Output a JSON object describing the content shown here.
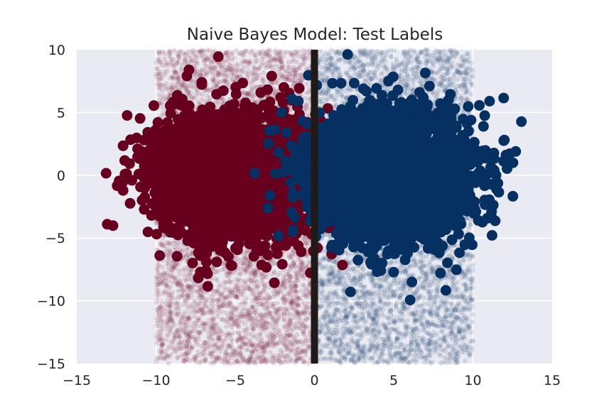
{
  "chart_data": {
    "type": "scatter",
    "title": "Naive Bayes Model: Test Labels",
    "xlabel": "",
    "ylabel": "",
    "xlim": [
      -15,
      15
    ],
    "ylim": [
      -15,
      10
    ],
    "xticks": [
      -15,
      -10,
      -5,
      0,
      5,
      10,
      15
    ],
    "xtick_labels": [
      "−15",
      "−10",
      "−5",
      "0",
      "5",
      "10",
      "15"
    ],
    "yticks": [
      -15,
      -10,
      -5,
      0,
      5,
      10
    ],
    "ytick_labels": [
      "−15",
      "−10",
      "−5",
      "0",
      "5",
      "10"
    ],
    "grid": true,
    "background": "#eaeaf2",
    "decision_boundary_x": 0,
    "boundary_color": "#1f1a17",
    "series": [
      {
        "kind": "prediction-grid",
        "color": "#67001f",
        "opacity": 0.12,
        "x_range": [
          -10,
          0
        ],
        "y_range": [
          -15,
          10
        ],
        "approx_count": 5000
      },
      {
        "kind": "prediction-grid",
        "color": "#053061",
        "opacity": 0.12,
        "x_range": [
          0,
          10
        ],
        "y_range": [
          -15,
          10
        ],
        "approx_count": 5000
      },
      {
        "kind": "test-points",
        "color": "#67001f",
        "center": [
          -5,
          0
        ],
        "std": [
          2.5,
          2.5
        ],
        "approx_count": 3000
      },
      {
        "kind": "test-points",
        "color": "#053061",
        "center": [
          5,
          0
        ],
        "std": [
          2.5,
          2.5
        ],
        "approx_count": 3000
      }
    ]
  }
}
